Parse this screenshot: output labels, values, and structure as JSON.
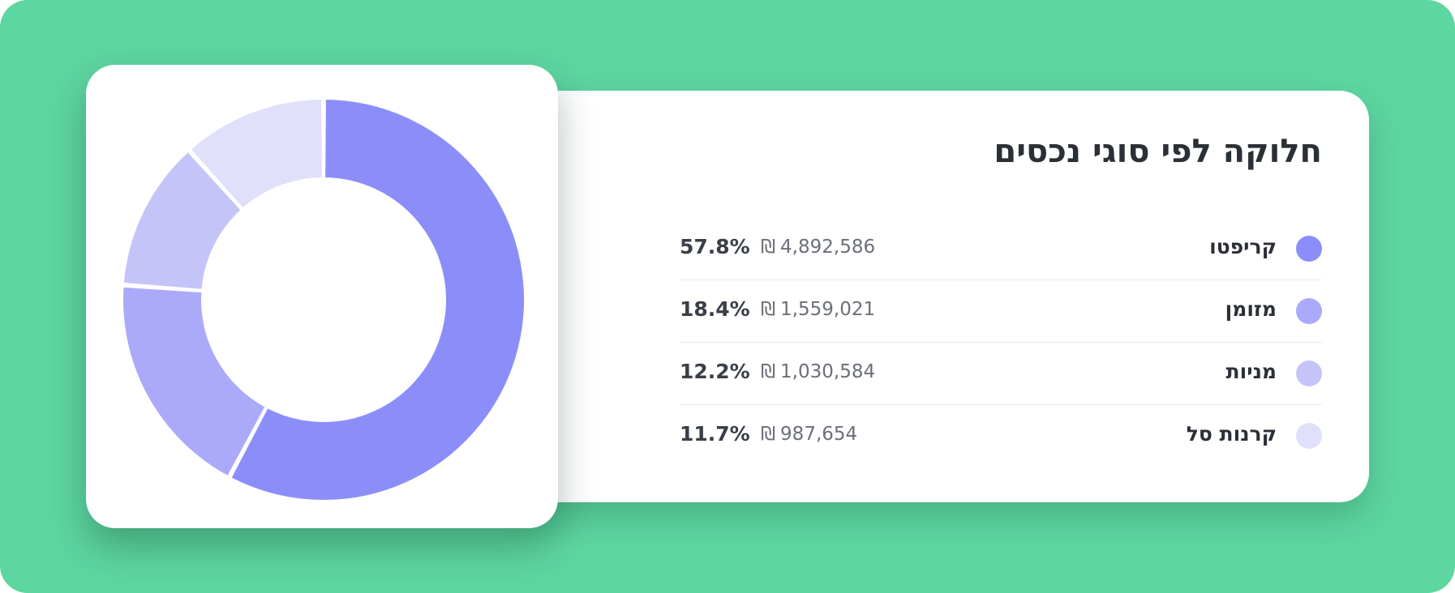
{
  "colors": {
    "background": "#5dd6a0",
    "card": "#ffffff",
    "text_dark": "#2b2f36",
    "text_muted": "#6b6f78"
  },
  "legend": {
    "title": "חלוקה לפי סוגי נכסים",
    "currency_symbol": "₪"
  },
  "chart_data": {
    "type": "pie",
    "title": "חלוקה לפי סוגי נכסים",
    "donut": true,
    "legend_position": "right",
    "categories": [
      "קריפטו",
      "מזומן",
      "מניות",
      "קרנות סל"
    ],
    "values": [
      4892586,
      1559021,
      1030584,
      987654
    ],
    "percents": [
      "57.8%",
      "18.4%",
      "12.2%",
      "11.7%"
    ],
    "amount_labels": [
      "4,892,586",
      "1,559,021",
      "1,030,584",
      "987,654"
    ],
    "colors": [
      "#8b8ef9",
      "#abaafa",
      "#c5c4f9",
      "#e0e0fb"
    ]
  }
}
